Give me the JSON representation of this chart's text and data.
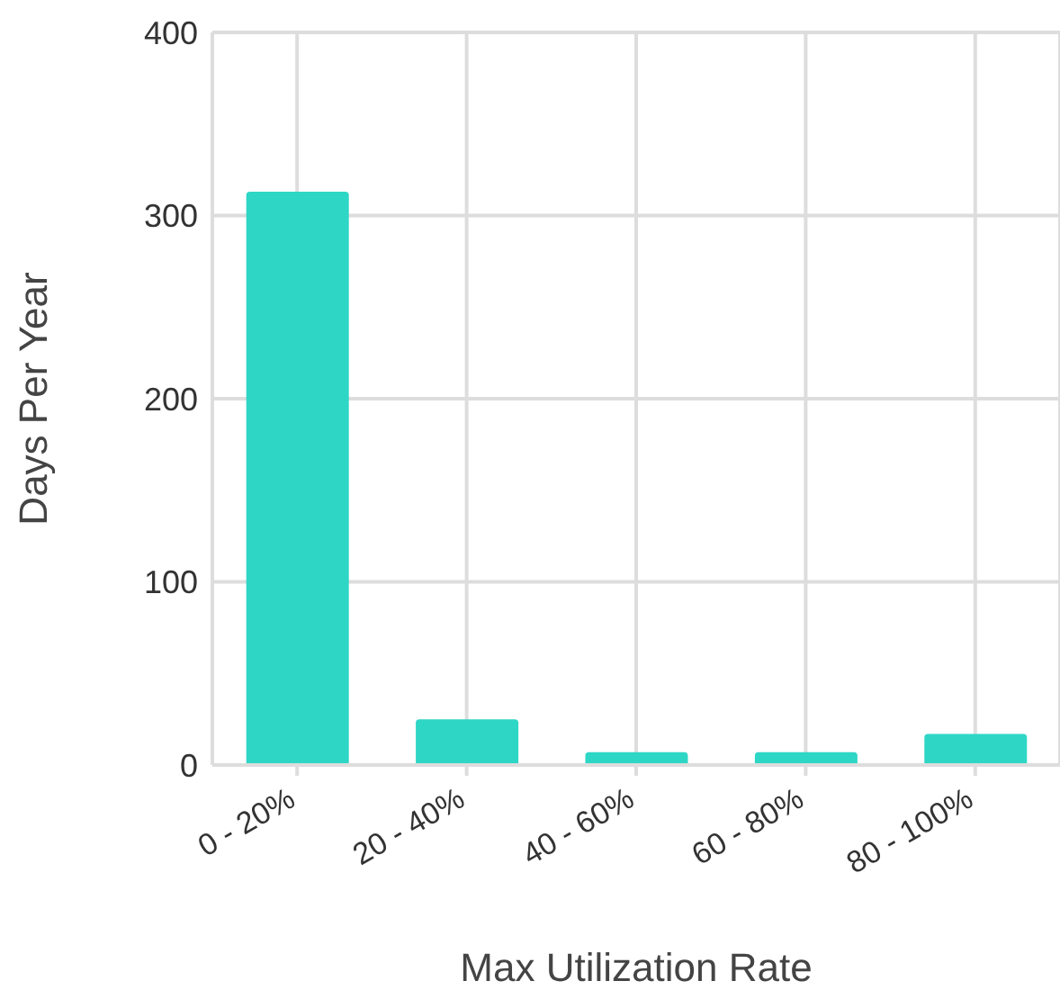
{
  "chart_data": {
    "type": "bar",
    "xlabel": "Max Utilization Rate",
    "ylabel": "Days Per Year",
    "categories": [
      "0 - 20%",
      "20 - 40%",
      "40 - 60%",
      "60 - 80%",
      "80 - 100%"
    ],
    "values": [
      313,
      25,
      7,
      7,
      17
    ],
    "color": "#2ed6c5",
    "ylim": [
      0,
      400
    ],
    "yticks": [
      0,
      100,
      200,
      300,
      400
    ],
    "grid": true
  }
}
